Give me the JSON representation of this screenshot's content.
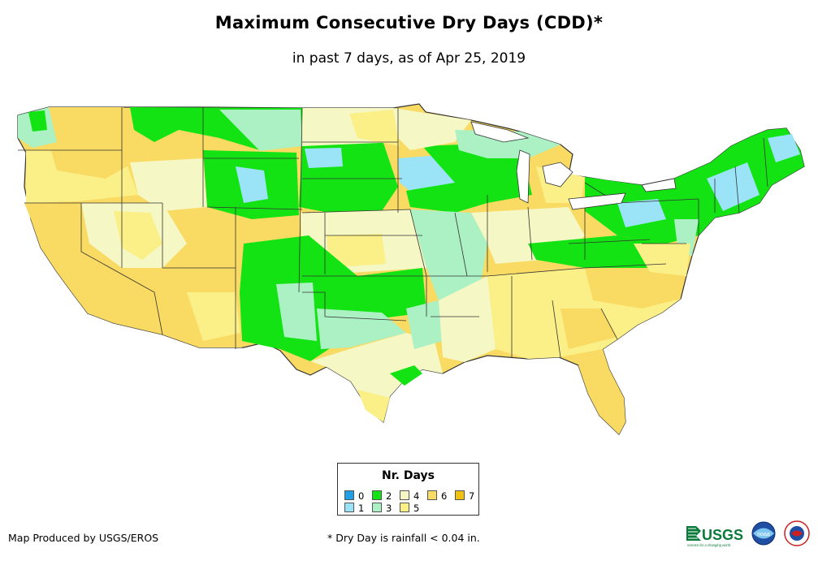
{
  "title": "Maximum Consecutive Dry Days (CDD)*",
  "subtitle": "in past 7 days, as of Apr 25, 2019",
  "legend": {
    "title": "Nr. Days",
    "items": [
      {
        "label": "0",
        "color": "#1fa0e6"
      },
      {
        "label": "1",
        "color": "#9be3f6"
      },
      {
        "label": "2",
        "color": "#13e313"
      },
      {
        "label": "3",
        "color": "#abf1c4"
      },
      {
        "label": "4",
        "color": "#f5f7c4"
      },
      {
        "label": "5",
        "color": "#fbef88"
      },
      {
        "label": "6",
        "color": "#f9da62"
      },
      {
        "label": "7",
        "color": "#f1c20d"
      }
    ]
  },
  "footer": {
    "credit": "Map Produced by USGS/EROS",
    "note": "* Dry Day is rainfall < 0.04 in."
  },
  "logos": {
    "usgs_text": "USGS",
    "usgs_tagline": "science for a changing world",
    "noaa_text": "noaa"
  },
  "icons": [
    "usgs-logo-icon",
    "noaa-logo-icon",
    "nws-logo-icon"
  ]
}
